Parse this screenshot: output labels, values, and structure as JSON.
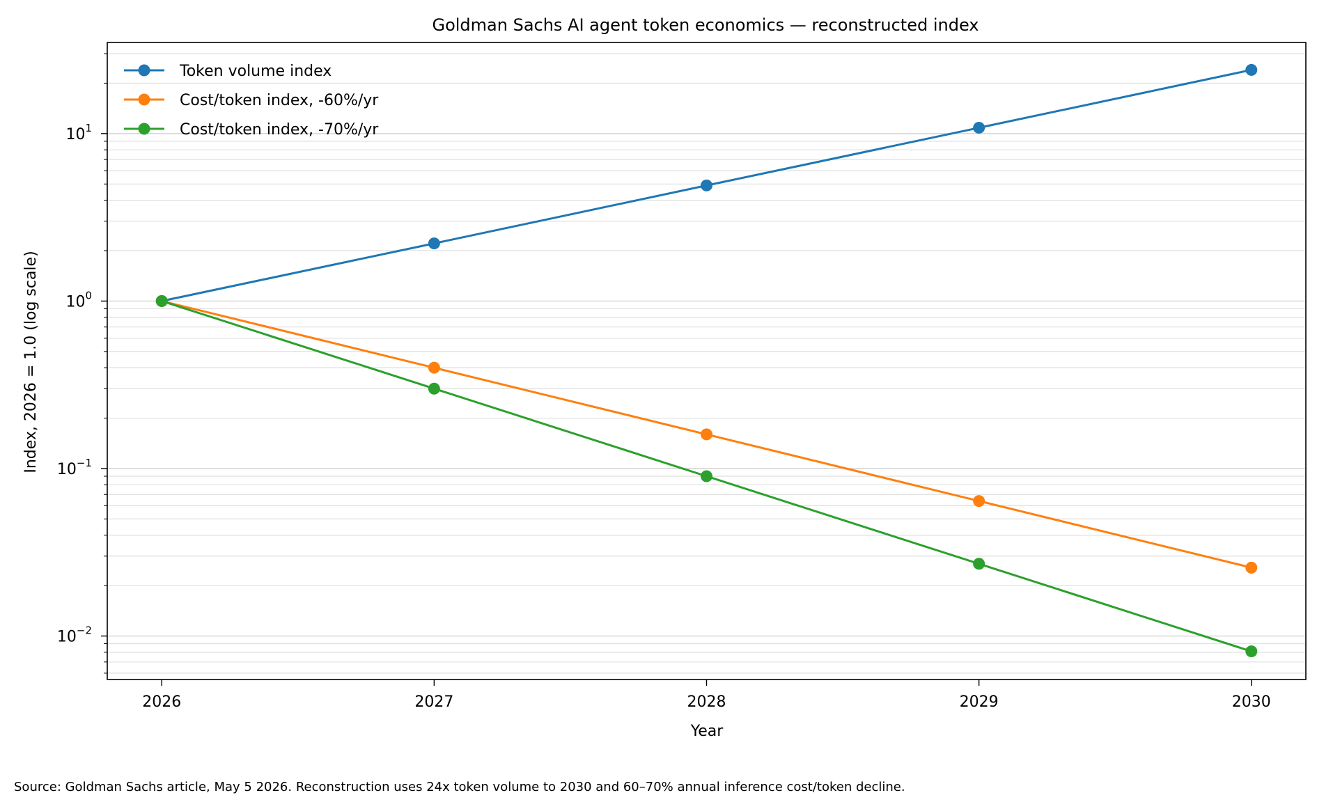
{
  "chart_data": {
    "type": "line",
    "title": "Goldman Sachs AI agent token economics — reconstructed index",
    "xlabel": "Year",
    "ylabel": "Index, 2026 = 1.0 (log scale)",
    "x": [
      2026,
      2027,
      2028,
      2029,
      2030
    ],
    "x_tick_labels": [
      "2026",
      "2027",
      "2028",
      "2029",
      "2030"
    ],
    "y_scale": "log",
    "ylim": [
      0.0055,
      35
    ],
    "y_tick_labels": [
      {
        "value": 10,
        "base": "10",
        "exp": "1"
      },
      {
        "value": 1,
        "base": "10",
        "exp": "0"
      },
      {
        "value": 0.1,
        "base": "10",
        "exp": "−1"
      },
      {
        "value": 0.01,
        "base": "10",
        "exp": "−2"
      }
    ],
    "grid": "y-major-and-minor",
    "legend_position": "top-left",
    "series": [
      {
        "name": "Token volume index",
        "color": "#1f77b4",
        "values": [
          1.0,
          2.21,
          4.9,
          10.84,
          24.0
        ]
      },
      {
        "name": "Cost/token index, -60%/yr",
        "color": "#ff7f0e",
        "values": [
          1.0,
          0.4,
          0.16,
          0.064,
          0.0256
        ]
      },
      {
        "name": "Cost/token index, -70%/yr",
        "color": "#2ca02c",
        "values": [
          1.0,
          0.3,
          0.09,
          0.027,
          0.0081
        ]
      }
    ]
  },
  "source_note": "Source: Goldman Sachs article, May 5 2026. Reconstruction uses 24x token volume to 2030 and 60–70% annual inference cost/token decline."
}
